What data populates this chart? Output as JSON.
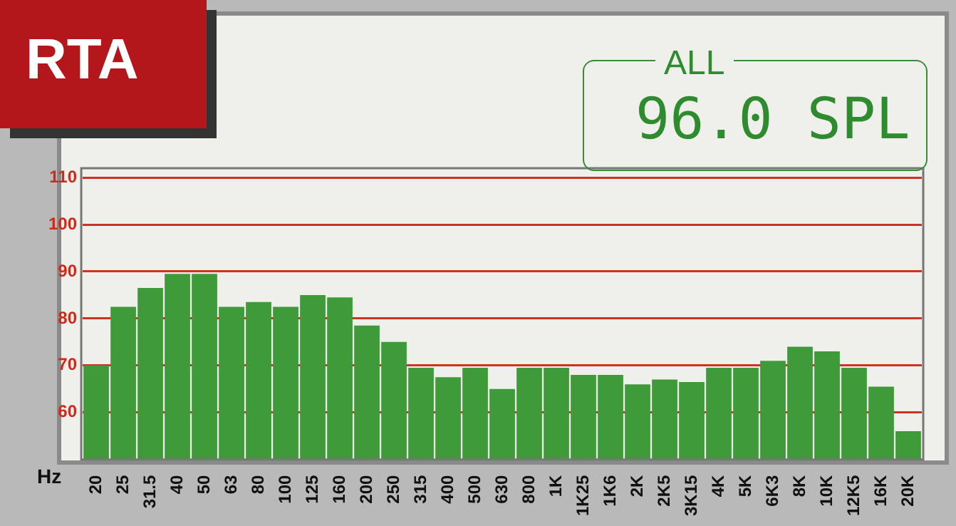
{
  "chart_data": {
    "type": "bar",
    "title": "RTA",
    "xlabel": "Hz",
    "annotations": [
      "ALL",
      "96.0 SPL"
    ],
    "categories": [
      "20",
      "25",
      "31.5",
      "40",
      "50",
      "63",
      "80",
      "100",
      "125",
      "160",
      "200",
      "250",
      "315",
      "400",
      "500",
      "630",
      "800",
      "1K",
      "1K25",
      "1K6",
      "2K",
      "2K5",
      "3K15",
      "4K",
      "5K",
      "6K3",
      "8K",
      "10K",
      "12K5",
      "16K",
      "20K"
    ],
    "values": [
      70,
      82.5,
      86.5,
      89.5,
      89.5,
      82.5,
      83.5,
      82.5,
      85,
      84.5,
      78.5,
      75,
      69.5,
      67.5,
      69.5,
      65,
      69.5,
      69.5,
      68,
      68,
      66,
      67,
      66.5,
      69.5,
      69.5,
      71,
      74,
      73,
      69.5,
      65.5,
      56
    ],
    "color": "#3f9a3a",
    "ylim": [
      50,
      112
    ],
    "yticks": [
      60,
      70,
      80,
      90,
      100,
      110
    ],
    "grid": "y",
    "legend": false
  }
}
